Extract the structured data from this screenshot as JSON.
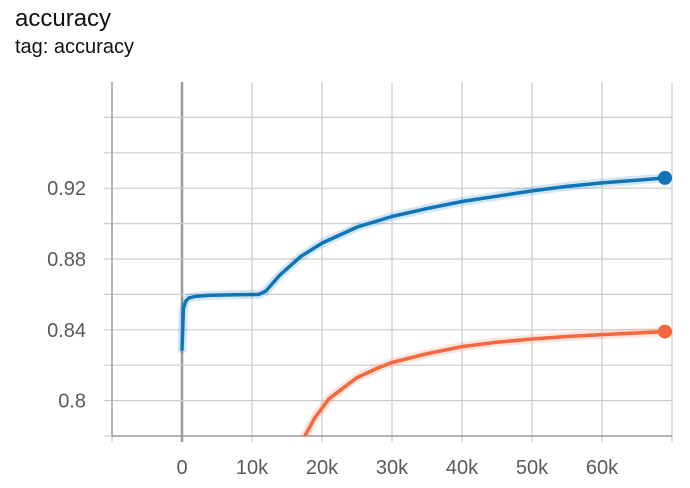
{
  "card": {
    "title": "accuracy",
    "subtitle": "tag: accuracy"
  },
  "chart_data": {
    "type": "line",
    "title": "accuracy",
    "xlabel": "",
    "ylabel": "",
    "xlim": [
      -10000,
      70000
    ],
    "ylim": [
      0.78,
      0.98
    ],
    "grid": true,
    "x_ticks": [
      0,
      10000,
      20000,
      30000,
      40000,
      50000,
      60000
    ],
    "x_tick_labels": [
      "0",
      "10k",
      "20k",
      "30k",
      "40k",
      "50k",
      "60k"
    ],
    "y_ticks": [
      0.8,
      0.84,
      0.88,
      0.92
    ],
    "y_tick_labels": [
      "0.8",
      "0.84",
      "0.88",
      "0.92"
    ],
    "series": [
      {
        "color": "#0d75b8",
        "x": [
          0,
          200,
          500,
          1000,
          2000,
          4000,
          8000,
          11000,
          12000,
          14000,
          17000,
          20000,
          25000,
          30000,
          35000,
          40000,
          45000,
          50000,
          55000,
          60000,
          65000,
          69000
        ],
        "y": [
          0.829,
          0.852,
          0.856,
          0.858,
          0.859,
          0.8595,
          0.8598,
          0.86,
          0.862,
          0.871,
          0.8815,
          0.889,
          0.898,
          0.904,
          0.9085,
          0.9125,
          0.9155,
          0.9185,
          0.921,
          0.923,
          0.9245,
          0.9258
        ]
      },
      {
        "color": "#f5673f",
        "x": [
          15500,
          17000,
          19000,
          21000,
          23000,
          25000,
          28000,
          30000,
          35000,
          40000,
          45000,
          50000,
          55000,
          60000,
          65000,
          69000
        ],
        "y": [
          0.76,
          0.776,
          0.7905,
          0.801,
          0.807,
          0.813,
          0.8185,
          0.8215,
          0.8265,
          0.8305,
          0.833,
          0.8348,
          0.8362,
          0.8373,
          0.8382,
          0.839
        ]
      }
    ]
  }
}
